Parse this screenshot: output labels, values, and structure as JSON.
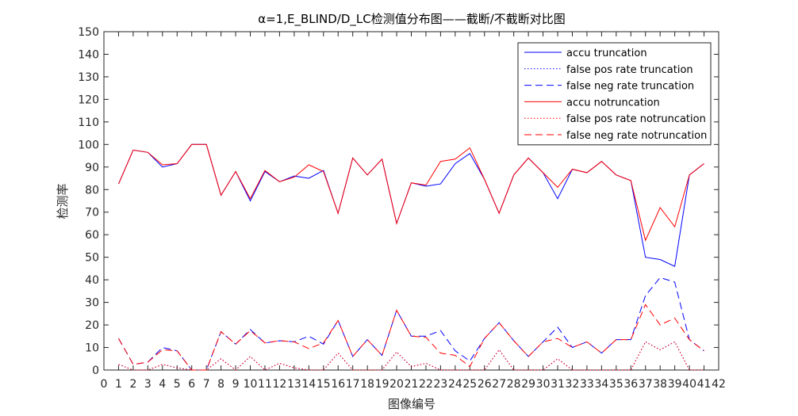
{
  "chart_data": {
    "type": "line",
    "title": "α=1,E_BLIND/D_LC检测值分布图——截断/不截断对比图",
    "xlabel": "图像编号",
    "ylabel": "检测率",
    "xlim": [
      0,
      42
    ],
    "ylim": [
      0,
      150
    ],
    "xticks": [
      0,
      1,
      2,
      3,
      4,
      5,
      6,
      7,
      8,
      9,
      10,
      11,
      12,
      13,
      14,
      15,
      16,
      17,
      18,
      19,
      20,
      21,
      22,
      23,
      24,
      25,
      26,
      27,
      28,
      29,
      30,
      31,
      32,
      33,
      34,
      35,
      36,
      37,
      38,
      39,
      40,
      41,
      42
    ],
    "yticks": [
      0,
      10,
      20,
      30,
      40,
      50,
      60,
      70,
      80,
      90,
      100,
      110,
      120,
      130,
      140,
      150
    ],
    "legend_position": "top-right",
    "x": [
      1,
      2,
      3,
      4,
      5,
      6,
      7,
      8,
      9,
      10,
      11,
      12,
      13,
      14,
      15,
      16,
      17,
      18,
      19,
      20,
      21,
      22,
      23,
      24,
      25,
      26,
      27,
      28,
      29,
      30,
      31,
      32,
      33,
      34,
      35,
      36,
      37,
      38,
      39,
      40,
      41
    ],
    "series": [
      {
        "name": "accu truncation",
        "color": "#0000ff",
        "dash": "solid",
        "values": [
          82.5,
          97.5,
          96.5,
          90,
          91.5,
          100,
          100,
          77.5,
          88,
          75,
          88,
          83.5,
          86,
          85,
          88.5,
          69.5,
          94,
          86.5,
          93.5,
          65,
          83,
          81.5,
          82.5,
          91.5,
          96,
          84.5,
          69.5,
          86.5,
          94,
          87.5,
          76,
          89,
          87.5,
          92.5,
          86.5,
          84,
          50,
          49,
          46,
          86.5,
          91.5
        ]
      },
      {
        "name": "false pos rate truncation",
        "color": "#0000ff",
        "dash": "dotted",
        "values": [
          2.5,
          0,
          0,
          2.5,
          1,
          0,
          0,
          5,
          0,
          6,
          0,
          3,
          1,
          0,
          0,
          7.5,
          0,
          0,
          0,
          8,
          1.5,
          3,
          0,
          0,
          0,
          0,
          9,
          0,
          0,
          0,
          5,
          0,
          0,
          0,
          0,
          0,
          12.5,
          9,
          12.5,
          0,
          0
        ]
      },
      {
        "name": "false neg rate truncation",
        "color": "#0000ff",
        "dash": "dashed",
        "values": [
          14,
          2.5,
          3.5,
          10,
          8.5,
          0,
          0,
          17,
          11.5,
          18,
          12,
          13,
          12.5,
          15,
          11.5,
          22,
          6,
          13.5,
          6.5,
          26.5,
          15,
          15,
          17.5,
          8.5,
          4,
          14,
          21,
          13,
          6,
          12.5,
          19,
          10,
          12.5,
          7.5,
          13.5,
          13.5,
          33,
          41,
          39,
          13.5,
          8.5
        ]
      },
      {
        "name": "accu notruncation",
        "color": "#ff0000",
        "dash": "solid",
        "values": [
          82.5,
          97.5,
          96.5,
          91,
          91.5,
          100,
          100,
          77.5,
          88,
          76,
          88.5,
          83.5,
          85.5,
          91,
          88,
          69.5,
          94,
          86.5,
          93.5,
          65,
          83,
          82,
          92.5,
          93.5,
          98.5,
          84.5,
          69.5,
          86.5,
          94,
          87.5,
          81,
          89,
          87.5,
          92.5,
          86.5,
          84,
          57.5,
          72,
          63.5,
          86.5,
          91.5
        ]
      },
      {
        "name": "false pos rate notruncation",
        "color": "#ff0000",
        "dash": "dotted",
        "values": [
          2.5,
          0,
          0,
          2.5,
          1,
          0,
          0,
          5,
          0,
          6,
          0,
          3,
          1,
          0,
          0,
          7.5,
          0,
          0,
          0,
          8,
          1.5,
          3,
          0,
          0,
          0,
          0,
          9,
          0,
          0,
          0,
          5,
          0,
          0,
          0,
          0,
          0,
          12.5,
          9,
          12.5,
          0,
          0
        ]
      },
      {
        "name": "false neg rate notruncation",
        "color": "#ff0000",
        "dash": "dashed",
        "values": [
          14,
          2.5,
          3.5,
          9,
          8.5,
          0,
          0,
          17,
          11.5,
          17.5,
          12,
          13,
          12.5,
          9.5,
          12,
          22,
          6,
          13.5,
          6.5,
          26.5,
          15,
          14.5,
          7.5,
          6.5,
          1.5,
          14,
          21,
          13,
          6,
          12.5,
          14,
          10,
          12.5,
          7.5,
          13.5,
          13.5,
          29,
          20,
          23,
          13.5,
          8.5
        ]
      }
    ]
  }
}
